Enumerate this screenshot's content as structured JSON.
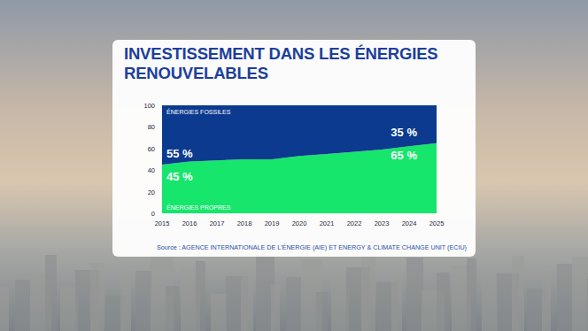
{
  "chart_data": {
    "type": "area",
    "title": "INVESTISSEMENT DANS LES ÉNERGIES RENOUVELABLES",
    "source": "Source : AGENCE INTERNATIONALE DE L'ÉNERGIE (AIE) ET ENERGY & CLIMATE CHANGE UNIT (ECIU)",
    "stacked": true,
    "x": [
      2015,
      2016,
      2017,
      2018,
      2019,
      2020,
      2021,
      2022,
      2023,
      2024,
      2025
    ],
    "series": [
      {
        "name": "ÉNERGIES PROPRES",
        "color": "#16e66c",
        "values": [
          45,
          48,
          49,
          50,
          50,
          53,
          55,
          57,
          59,
          62,
          65
        ],
        "value_labels": [
          "45 %",
          null,
          null,
          null,
          null,
          null,
          null,
          null,
          null,
          null,
          "65 %"
        ]
      },
      {
        "name": "ÉNERGIES FOSSILES",
        "color": "#0b3a8e",
        "values": [
          55,
          52,
          51,
          50,
          50,
          47,
          45,
          43,
          41,
          38,
          35
        ],
        "value_labels": [
          "55 %",
          null,
          null,
          null,
          null,
          null,
          null,
          null,
          null,
          null,
          "35 %"
        ]
      }
    ],
    "data_labels": true,
    "xlim": [
      2015,
      2025
    ],
    "xticks": [
      2015,
      2016,
      2017,
      2018,
      2019,
      2020,
      2021,
      2022,
      2023,
      2024,
      2025
    ],
    "ylim": [
      0,
      100
    ],
    "yticks": [
      0,
      20,
      40,
      60,
      80,
      100
    ],
    "grid": false
  }
}
